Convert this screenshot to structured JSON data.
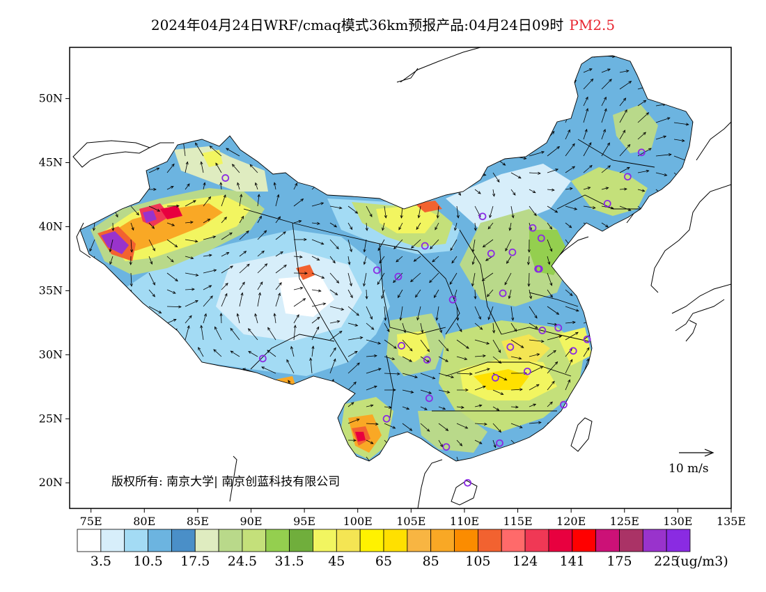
{
  "title": {
    "main": "2024年04月24日WRF/cmaq模式36km预报产品:04月24日09时",
    "product": "PM2.5",
    "product_color": "#e8242f"
  },
  "axes": {
    "lat_labels": [
      "50N",
      "45N",
      "40N",
      "35N",
      "30N",
      "25N",
      "20N"
    ],
    "lat_values": [
      50,
      45,
      40,
      35,
      30,
      25,
      20
    ],
    "lon_labels": [
      "75E",
      "80E",
      "85E",
      "90E",
      "95E",
      "100E",
      "105E",
      "110E",
      "115E",
      "120E",
      "125E",
      "130E",
      "135E"
    ],
    "lon_values": [
      75,
      80,
      85,
      90,
      95,
      100,
      105,
      110,
      115,
      120,
      125,
      130,
      135
    ],
    "lon_range": [
      73,
      135
    ],
    "lat_range": [
      18,
      54
    ]
  },
  "wind_reference": {
    "label": "10 m/s"
  },
  "copyright": "版权所有: 南京大学| 南京创蓝科技有限公司",
  "colorbar": {
    "colors": [
      "#ffffff",
      "#d7eefa",
      "#a3dbf4",
      "#6cb4e0",
      "#4a8fc8",
      "#dfecc0",
      "#b9d98a",
      "#c4e07a",
      "#94cf4f",
      "#70ae3c",
      "#f2f560",
      "#f4e553",
      "#fff200",
      "#ffe000",
      "#f8b542",
      "#f9a825",
      "#fb8c00",
      "#f26230",
      "#ff6a6a",
      "#f03855",
      "#e8003f",
      "#ff0000",
      "#cc1177",
      "#aa3366",
      "#9933cc",
      "#8a2be2"
    ],
    "tick_labels": [
      "3.5",
      "10.5",
      "17.5",
      "24.5",
      "31.5",
      "45",
      "65",
      "85",
      "105",
      "124",
      "141",
      "175",
      "225"
    ],
    "unit": "(ug/m3)"
  },
  "city_markers_color": "#8a2be2",
  "city_markers": [
    {
      "lon": 87.6,
      "lat": 43.8
    },
    {
      "lon": 91.1,
      "lat": 29.7
    },
    {
      "lon": 101.8,
      "lat": 36.6
    },
    {
      "lon": 103.8,
      "lat": 36.1
    },
    {
      "lon": 106.3,
      "lat": 38.5
    },
    {
      "lon": 111.7,
      "lat": 40.8
    },
    {
      "lon": 112.5,
      "lat": 37.9
    },
    {
      "lon": 114.5,
      "lat": 38.0
    },
    {
      "lon": 116.4,
      "lat": 39.9
    },
    {
      "lon": 117.2,
      "lat": 39.1
    },
    {
      "lon": 117.0,
      "lat": 36.7
    },
    {
      "lon": 113.6,
      "lat": 34.8
    },
    {
      "lon": 108.9,
      "lat": 34.3
    },
    {
      "lon": 104.1,
      "lat": 30.7
    },
    {
      "lon": 106.5,
      "lat": 29.6
    },
    {
      "lon": 106.7,
      "lat": 26.6
    },
    {
      "lon": 102.7,
      "lat": 25.0
    },
    {
      "lon": 108.3,
      "lat": 22.8
    },
    {
      "lon": 113.3,
      "lat": 23.1
    },
    {
      "lon": 110.3,
      "lat": 20.0
    },
    {
      "lon": 112.9,
      "lat": 28.2
    },
    {
      "lon": 114.3,
      "lat": 30.6
    },
    {
      "lon": 115.9,
      "lat": 28.7
    },
    {
      "lon": 117.3,
      "lat": 31.9
    },
    {
      "lon": 118.8,
      "lat": 32.1
    },
    {
      "lon": 120.2,
      "lat": 30.3
    },
    {
      "lon": 121.5,
      "lat": 31.2
    },
    {
      "lon": 119.3,
      "lat": 26.1
    },
    {
      "lon": 123.4,
      "lat": 41.8
    },
    {
      "lon": 125.3,
      "lat": 43.9
    },
    {
      "lon": 126.6,
      "lat": 45.8
    },
    {
      "lon": 116.9,
      "lat": 36.7
    }
  ]
}
